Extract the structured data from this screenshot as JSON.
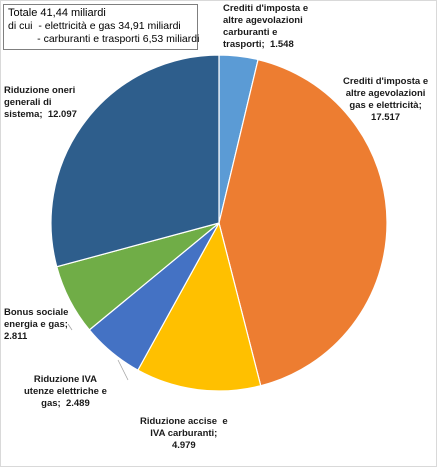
{
  "summary": {
    "title": "Totale 41,44 miliardi",
    "line1": "di cui  - elettricità e gas 34,91 miliardi",
    "line2": "          - carburanti e trasporti 6,53 miliardi"
  },
  "chart_data": {
    "type": "pie",
    "start_angle_deg": 0,
    "direction": "clockwise",
    "slices": [
      {
        "label": "Crediti d'imposta e\naltre agevolazioni\ncarburanti e\ntrasporti;  1.548",
        "value": 1.548,
        "color": "#5b9bd5"
      },
      {
        "label": "Crediti d'imposta e\naltre agevolazioni\ngas e elettricità;\n17.517",
        "value": 17.517,
        "color": "#ed7d31"
      },
      {
        "label": "Riduzione accise  e\nIVA carburanti;\n4.979",
        "value": 4.979,
        "color": "#ffc000"
      },
      {
        "label": "Riduzione IVA\nutenze elettriche e\ngas;  2.489",
        "value": 2.489,
        "color": "#4472c4"
      },
      {
        "label": "Bonus sociale\nenergia e gas;\n2.811",
        "value": 2.811,
        "color": "#70ad47"
      },
      {
        "label": "Riduzione oneri\ngenerali di\nsistema;  12.097",
        "value": 12.097,
        "color": "#2e5e8c"
      }
    ]
  }
}
